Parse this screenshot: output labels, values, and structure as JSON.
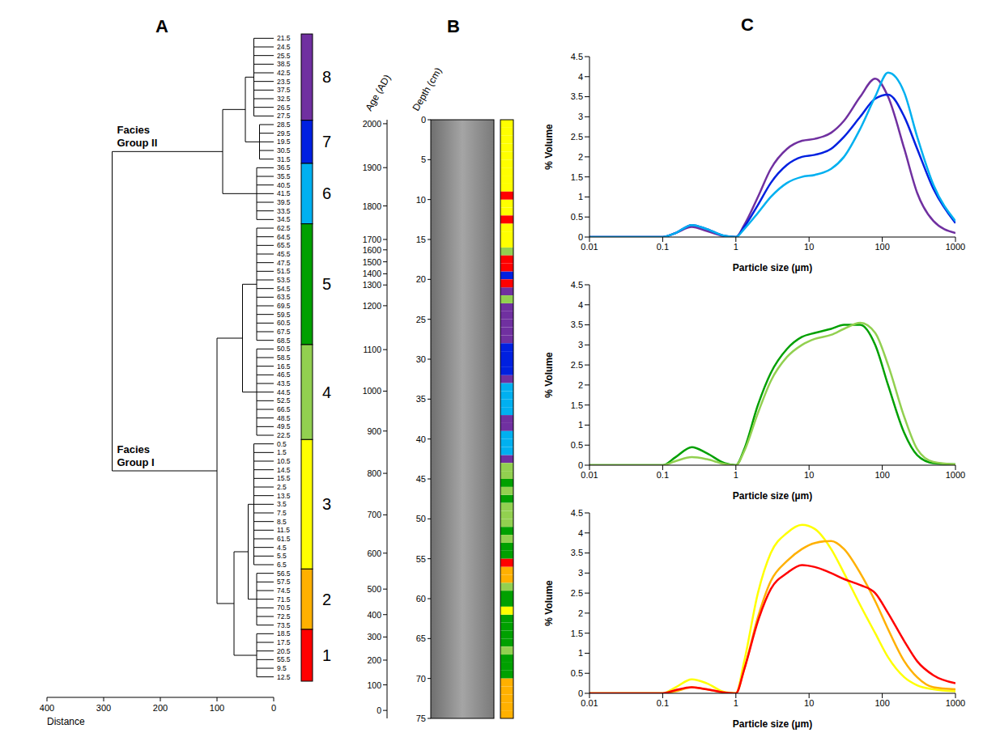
{
  "chart_data": [
    {
      "panel": "A",
      "type": "dendrogram",
      "xlabel": "Distance",
      "xlim": [
        400,
        0
      ],
      "xticks": [
        400,
        300,
        200,
        100,
        0
      ],
      "clusters": [
        {
          "id": 8,
          "color": "#7030a0",
          "distance": 35,
          "leaves": [
            "21.5",
            "24.5",
            "25.5",
            "38.5",
            "42.5",
            "23.5",
            "37.5",
            "32.5",
            "26.5",
            "27.5"
          ]
        },
        {
          "id": 7,
          "color": "#0020e0",
          "distance": 25,
          "leaves": [
            "28.5",
            "29.5",
            "19.5",
            "30.5",
            "31.5"
          ]
        },
        {
          "id": 6,
          "color": "#00b0f0",
          "distance": 30,
          "leaves": [
            "36.5",
            "35.5",
            "40.5",
            "41.5",
            "39.5",
            "33.5",
            "34.5"
          ]
        },
        {
          "id": 5,
          "color": "#00a000",
          "distance": 30,
          "leaves": [
            "62.5",
            "64.5",
            "65.5",
            "45.5",
            "47.5",
            "51.5",
            "53.5",
            "54.5",
            "63.5",
            "69.5",
            "59.5",
            "60.5",
            "67.5",
            "68.5"
          ]
        },
        {
          "id": 4,
          "color": "#92d050",
          "distance": 30,
          "leaves": [
            "50.5",
            "58.5",
            "16.5",
            "46.5",
            "43.5",
            "44.5",
            "52.5",
            "66.5",
            "48.5",
            "49.5",
            "22.5"
          ]
        },
        {
          "id": 3,
          "color": "#ffff00",
          "distance": 35,
          "leaves": [
            "0.5",
            "1.5",
            "10.5",
            "14.5",
            "15.5",
            "2.5",
            "13.5",
            "3.5",
            "7.5",
            "8.5",
            "11.5",
            "61.5",
            "4.5",
            "5.5",
            "6.5"
          ]
        },
        {
          "id": 2,
          "color": "#ffb000",
          "distance": 30,
          "leaves": [
            "56.5",
            "57.5",
            "74.5",
            "71.5",
            "70.5",
            "72.5",
            "73.5"
          ]
        },
        {
          "id": 1,
          "color": "#ff0000",
          "distance": 30,
          "leaves": [
            "18.5",
            "17.5",
            "20.5",
            "55.5",
            "9.5",
            "12.5"
          ]
        }
      ],
      "tree": {
        "distance": 285,
        "children": [
          {
            "distance": 90,
            "label": "Facies Group II",
            "children": [
              {
                "distance": 50,
                "children": [
                  8,
                  7
                ]
              },
              6
            ]
          },
          {
            "distance": 100,
            "label": "Facies Group I",
            "children": [
              {
                "distance": 55,
                "children": [
                  5,
                  4
                ]
              },
              {
                "distance": 70,
                "children": [
                  {
                    "distance": 45,
                    "children": [
                      3,
                      2
                    ]
                  },
                  1
                ]
              }
            ]
          }
        ]
      }
    },
    {
      "panel": "B",
      "type": "core",
      "ylabel": "Depth (cm)",
      "ylim": [
        0,
        75
      ],
      "yticks": [
        0,
        5,
        10,
        15,
        20,
        25,
        30,
        35,
        40,
        45,
        50,
        55,
        60,
        65,
        70,
        75
      ],
      "age_label": "Age (AD)",
      "age_ticks": [
        {
          "value": 2000,
          "depth": 0.5
        },
        {
          "value": 1900,
          "depth": 6
        },
        {
          "value": 1800,
          "depth": 10.8
        },
        {
          "value": 1700,
          "depth": 15
        },
        {
          "value": 1600,
          "depth": 16.3
        },
        {
          "value": 1500,
          "depth": 17.8
        },
        {
          "value": 1400,
          "depth": 19.3
        },
        {
          "value": 1300,
          "depth": 20.7
        },
        {
          "value": 1200,
          "depth": 23.3
        },
        {
          "value": 1100,
          "depth": 28.8
        },
        {
          "value": 1000,
          "depth": 34
        },
        {
          "value": 900,
          "depth": 39
        },
        {
          "value": 800,
          "depth": 44.3
        },
        {
          "value": 700,
          "depth": 49.5
        },
        {
          "value": 600,
          "depth": 54.3
        },
        {
          "value": 500,
          "depth": 58.8
        },
        {
          "value": 400,
          "depth": 62
        },
        {
          "value": 300,
          "depth": 64.8
        },
        {
          "value": 200,
          "depth": 67.7
        },
        {
          "value": 100,
          "depth": 70.8
        },
        {
          "value": 0,
          "depth": 74
        }
      ]
    },
    {
      "panel": "C",
      "type": "line",
      "log": "x",
      "grid": false,
      "xlabel": "Particle size (µm)",
      "ylabel": "% Volume",
      "xlim": [
        0.01,
        1000
      ],
      "xticks": [
        0.01,
        0.1,
        1,
        10,
        100,
        1000
      ],
      "ylim": [
        0,
        4.5
      ],
      "yticks": [
        0,
        0.5,
        1,
        1.5,
        2,
        2.5,
        3,
        3.5,
        4,
        4.5
      ],
      "x": [
        0.01,
        0.1,
        0.15,
        0.25,
        0.4,
        0.7,
        1,
        1.3,
        2,
        3,
        5,
        8,
        12,
        20,
        30,
        50,
        80,
        120,
        200,
        300,
        500,
        1000
      ],
      "series": [
        {
          "color": "#7030a0",
          "values": [
            0,
            0,
            0.1,
            0.25,
            0.15,
            0.02,
            0,
            0.3,
            1.0,
            1.7,
            2.2,
            2.4,
            2.45,
            2.6,
            2.9,
            3.5,
            3.95,
            3.5,
            2.2,
            1.1,
            0.4,
            0.1
          ]
        },
        {
          "color": "#0020e0",
          "values": [
            0,
            0,
            0.1,
            0.3,
            0.2,
            0.03,
            0,
            0.25,
            0.8,
            1.35,
            1.8,
            2.0,
            2.05,
            2.2,
            2.5,
            3.0,
            3.45,
            3.55,
            3.0,
            2.2,
            1.2,
            0.35
          ]
        },
        {
          "color": "#00b0f0",
          "values": [
            0,
            0,
            0.1,
            0.3,
            0.2,
            0.03,
            0,
            0.2,
            0.6,
            1.0,
            1.35,
            1.5,
            1.55,
            1.7,
            2.0,
            2.7,
            3.5,
            4.1,
            3.6,
            2.5,
            1.3,
            0.4
          ]
        }
      ]
    },
    {
      "type": "line",
      "log": "x",
      "grid": false,
      "xlabel": "Particle size (µm)",
      "ylabel": "% Volume",
      "xlim": [
        0.01,
        1000
      ],
      "xticks": [
        0.01,
        0.1,
        1,
        10,
        100,
        1000
      ],
      "ylim": [
        0,
        4.5
      ],
      "yticks": [
        0,
        0.5,
        1,
        1.5,
        2,
        2.5,
        3,
        3.5,
        4,
        4.5
      ],
      "x": [
        0.01,
        0.1,
        0.15,
        0.25,
        0.4,
        0.7,
        1,
        1.3,
        2,
        3,
        5,
        8,
        12,
        20,
        30,
        50,
        80,
        120,
        200,
        300,
        500,
        1000
      ],
      "series": [
        {
          "color": "#00a000",
          "values": [
            0,
            0,
            0.2,
            0.45,
            0.3,
            0.05,
            0,
            0.4,
            1.5,
            2.3,
            2.9,
            3.2,
            3.3,
            3.4,
            3.5,
            3.5,
            3.0,
            2.0,
            0.8,
            0.25,
            0.05,
            0.02
          ]
        },
        {
          "color": "#92d050",
          "values": [
            0,
            0,
            0.1,
            0.2,
            0.15,
            0.03,
            0,
            0.35,
            1.3,
            2.1,
            2.7,
            3.0,
            3.15,
            3.25,
            3.4,
            3.55,
            3.3,
            2.5,
            1.2,
            0.4,
            0.08,
            0.02
          ]
        }
      ]
    },
    {
      "type": "line",
      "log": "x",
      "grid": false,
      "xlabel": "Particle size (µm)",
      "ylabel": "% Volume",
      "xlim": [
        0.01,
        1000
      ],
      "xticks": [
        0.01,
        0.1,
        1,
        10,
        100,
        1000
      ],
      "ylim": [
        0,
        4.5
      ],
      "yticks": [
        0,
        0.5,
        1,
        1.5,
        2,
        2.5,
        3,
        3.5,
        4,
        4.5
      ],
      "x": [
        0.01,
        0.1,
        0.15,
        0.25,
        0.4,
        0.7,
        1,
        1.3,
        2,
        3,
        5,
        8,
        12,
        20,
        30,
        50,
        80,
        120,
        200,
        300,
        500,
        1000
      ],
      "series": [
        {
          "color": "#ffff00",
          "values": [
            0,
            0,
            0.15,
            0.35,
            0.25,
            0.03,
            0,
            0.8,
            2.5,
            3.5,
            4.0,
            4.2,
            4.1,
            3.6,
            3.0,
            2.2,
            1.5,
            0.9,
            0.4,
            0.2,
            0.1,
            0.05
          ]
        },
        {
          "color": "#ffb000",
          "values": [
            0,
            0,
            0.05,
            0.15,
            0.1,
            0.02,
            0,
            0.6,
            1.9,
            2.8,
            3.3,
            3.6,
            3.75,
            3.8,
            3.6,
            3.0,
            2.3,
            1.6,
            0.8,
            0.4,
            0.15,
            0.1
          ]
        },
        {
          "color": "#ff0000",
          "values": [
            0,
            0,
            0.08,
            0.15,
            0.1,
            0.02,
            0,
            0.6,
            1.8,
            2.6,
            3.0,
            3.2,
            3.15,
            3.0,
            2.85,
            2.7,
            2.5,
            2.0,
            1.3,
            0.8,
            0.45,
            0.25
          ]
        }
      ]
    }
  ]
}
